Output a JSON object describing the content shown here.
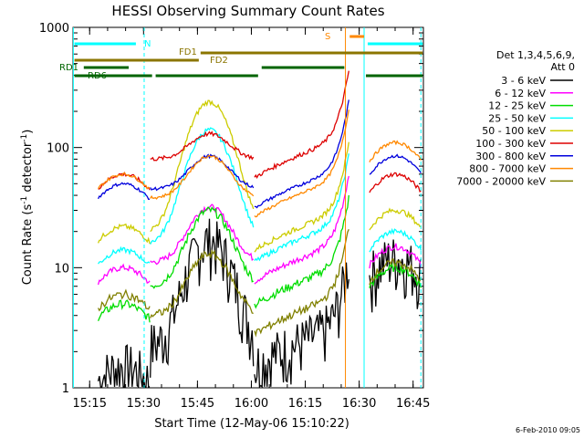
{
  "chart_data": {
    "type": "line",
    "title": "HESSI Observing Summary Count Rates",
    "xlabel": "Start Time (12-May-06 15:10:22)",
    "ylabel_main": "Count Rate (s",
    "ylabel_sup1": "-1",
    "ylabel_mid": " detector",
    "ylabel_sup2": "-1",
    "ylabel_end": ")",
    "yscale": "log",
    "ylim": [
      1,
      1000
    ],
    "xlim_minutes": [
      15.17,
      15.83
    ],
    "x_ticks": [
      "15:15",
      "15:30",
      "15:45",
      "16:00",
      "16:15",
      "16:30",
      "16:45"
    ],
    "y_ticks": [
      "1",
      "10",
      "100",
      "1000"
    ],
    "footer_date": "6-Feb-2010 09:05",
    "legend": {
      "header1": "Det 1,3,4,5,6,9,",
      "header2": "Att 0",
      "entries": [
        {
          "label": "3 - 6 keV",
          "color": "#000000"
        },
        {
          "label": "6 - 12 keV",
          "color": "#ff00ff"
        },
        {
          "label": "12 - 25 keV",
          "color": "#00dd00"
        },
        {
          "label": "25 - 50 keV",
          "color": "#00ffff"
        },
        {
          "label": "50 - 100 keV",
          "color": "#cccc00"
        },
        {
          "label": "100 - 300 keV",
          "color": "#dd0000"
        },
        {
          "label": "300 - 800 keV",
          "color": "#0000dd"
        },
        {
          "label": "800 - 7000 keV",
          "color": "#ff8800"
        },
        {
          "label": "7000 - 20000 keV",
          "color": "#808000"
        }
      ]
    },
    "flags": [
      {
        "label": "N",
        "color": "#00ffff"
      },
      {
        "label": "S",
        "color": "#ff8800"
      },
      {
        "label": "FD1",
        "color": "#8b7500"
      },
      {
        "label": "FD2",
        "color": "#8b7500"
      },
      {
        "label": "RD1",
        "color": "#006400"
      },
      {
        "label": "RD6",
        "color": "#006400"
      }
    ],
    "series": [
      {
        "name": "3 - 6 keV",
        "color": "#000000",
        "min_tenths": [
          [
            15.1,
            1.5
          ],
          [
            15.2,
            1.5
          ],
          [
            15.3,
            1.5
          ],
          [
            15.35,
            2
          ],
          [
            15.4,
            6
          ],
          [
            15.45,
            15
          ],
          [
            15.5,
            16
          ],
          [
            15.55,
            14
          ],
          [
            15.6,
            6
          ],
          [
            15.65,
            3
          ],
          [
            15.7,
            2.5
          ],
          [
            15.75,
            3
          ],
          [
            15.8,
            1.5
          ],
          [
            16.3,
            10
          ],
          [
            16.4,
            12
          ],
          [
            16.5,
            11
          ],
          [
            16.6,
            9
          ]
        ]
      },
      {
        "name": "6 - 12 keV",
        "color": "#ff00ff"
      },
      {
        "name": "12 - 25 keV",
        "color": "#00dd00"
      },
      {
        "name": "25 - 50 keV",
        "color": "#00ffff"
      },
      {
        "name": "50 - 100 keV",
        "color": "#cccc00"
      },
      {
        "name": "100 - 300 keV",
        "color": "#dd0000"
      },
      {
        "name": "300 - 800 keV",
        "color": "#0000dd"
      },
      {
        "name": "800 - 7000 keV",
        "color": "#ff8800"
      },
      {
        "name": "7000 - 20000 keV",
        "color": "#808000"
      }
    ]
  }
}
